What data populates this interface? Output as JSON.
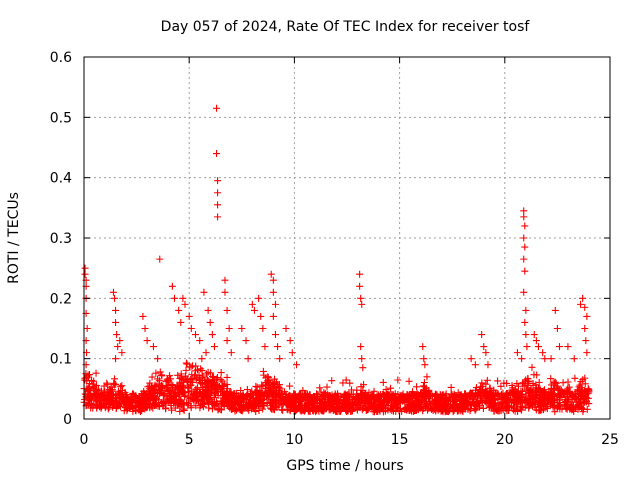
{
  "chart_data": {
    "type": "scatter",
    "title": "Day 057 of 2024, Rate Of TEC Index for receiver tosf",
    "xlabel": "GPS time / hours",
    "ylabel": "ROTI / TECUs",
    "xlim": [
      0,
      25
    ],
    "ylim": [
      0,
      0.6
    ],
    "x_ticks": [
      0,
      5,
      10,
      15,
      20,
      25
    ],
    "y_ticks": [
      0,
      0.1,
      0.2,
      0.3,
      0.4,
      0.5,
      0.6
    ],
    "x_tick_labels": [
      "0",
      "5",
      "10",
      "15",
      "20",
      "25"
    ],
    "y_tick_labels": [
      "0",
      "0.1",
      "0.2",
      "0.3",
      "0.4",
      "0.5",
      "0.6"
    ],
    "grid": true,
    "marker": "+",
    "marker_color": "#ff0000",
    "series": [
      {
        "name": "ROTI",
        "description": "Dense cloud of ROTI samples 0.01-0.06 TECU/min spanning 0-24 h, with spikes near 0.1 h, 1.5 h, 3.5 h, 4.5-6.5 h, 6.3 h, 8-9 h, 13.1 h, 16.2 h, 19 h, 20.9 h, 21.5 h, 23.8 h",
        "points": [
          [
            0.05,
            0.25
          ],
          [
            0.05,
            0.24
          ],
          [
            0.1,
            0.23
          ],
          [
            0.1,
            0.22
          ],
          [
            0.1,
            0.2
          ],
          [
            0.1,
            0.175
          ],
          [
            0.15,
            0.15
          ],
          [
            0.1,
            0.13
          ],
          [
            0.12,
            0.11
          ],
          [
            0.1,
            0.09
          ],
          [
            1.4,
            0.21
          ],
          [
            1.45,
            0.2
          ],
          [
            1.5,
            0.18
          ],
          [
            1.5,
            0.16
          ],
          [
            1.55,
            0.14
          ],
          [
            1.6,
            0.12
          ],
          [
            1.5,
            0.1
          ],
          [
            1.7,
            0.13
          ],
          [
            1.8,
            0.11
          ],
          [
            2.8,
            0.17
          ],
          [
            2.9,
            0.15
          ],
          [
            3.0,
            0.13
          ],
          [
            3.6,
            0.265
          ],
          [
            3.3,
            0.12
          ],
          [
            3.5,
            0.1
          ],
          [
            4.2,
            0.22
          ],
          [
            4.3,
            0.2
          ],
          [
            4.5,
            0.18
          ],
          [
            4.6,
            0.16
          ],
          [
            4.7,
            0.2
          ],
          [
            4.8,
            0.19
          ],
          [
            5.0,
            0.17
          ],
          [
            5.1,
            0.15
          ],
          [
            5.3,
            0.14
          ],
          [
            5.5,
            0.13
          ],
          [
            5.7,
            0.21
          ],
          [
            5.9,
            0.18
          ],
          [
            6.0,
            0.16
          ],
          [
            6.1,
            0.14
          ],
          [
            6.2,
            0.12
          ],
          [
            5.8,
            0.11
          ],
          [
            5.6,
            0.1
          ],
          [
            6.3,
            0.515
          ],
          [
            6.3,
            0.44
          ],
          [
            6.35,
            0.395
          ],
          [
            6.35,
            0.375
          ],
          [
            6.35,
            0.355
          ],
          [
            6.35,
            0.335
          ],
          [
            6.7,
            0.23
          ],
          [
            6.7,
            0.21
          ],
          [
            6.8,
            0.18
          ],
          [
            6.9,
            0.15
          ],
          [
            6.8,
            0.13
          ],
          [
            7.0,
            0.11
          ],
          [
            7.5,
            0.15
          ],
          [
            7.7,
            0.13
          ],
          [
            7.8,
            0.1
          ],
          [
            8.0,
            0.19
          ],
          [
            8.1,
            0.18
          ],
          [
            8.3,
            0.2
          ],
          [
            8.4,
            0.17
          ],
          [
            8.5,
            0.15
          ],
          [
            8.6,
            0.12
          ],
          [
            8.9,
            0.24
          ],
          [
            9.0,
            0.23
          ],
          [
            9.0,
            0.21
          ],
          [
            9.1,
            0.19
          ],
          [
            9.0,
            0.17
          ],
          [
            9.1,
            0.14
          ],
          [
            9.2,
            0.12
          ],
          [
            9.3,
            0.1
          ],
          [
            9.6,
            0.15
          ],
          [
            9.8,
            0.13
          ],
          [
            9.9,
            0.11
          ],
          [
            10.1,
            0.09
          ],
          [
            13.1,
            0.24
          ],
          [
            13.1,
            0.22
          ],
          [
            13.15,
            0.2
          ],
          [
            13.2,
            0.19
          ],
          [
            13.15,
            0.12
          ],
          [
            13.2,
            0.1
          ],
          [
            13.25,
            0.085
          ],
          [
            16.1,
            0.12
          ],
          [
            16.15,
            0.1
          ],
          [
            16.2,
            0.09
          ],
          [
            16.3,
            0.07
          ],
          [
            18.4,
            0.1
          ],
          [
            18.6,
            0.09
          ],
          [
            18.9,
            0.14
          ],
          [
            19.0,
            0.12
          ],
          [
            19.1,
            0.11
          ],
          [
            19.2,
            0.09
          ],
          [
            20.6,
            0.11
          ],
          [
            20.8,
            0.1
          ],
          [
            20.9,
            0.345
          ],
          [
            20.9,
            0.335
          ],
          [
            20.95,
            0.32
          ],
          [
            20.9,
            0.3
          ],
          [
            20.95,
            0.285
          ],
          [
            20.9,
            0.265
          ],
          [
            20.95,
            0.245
          ],
          [
            20.9,
            0.21
          ],
          [
            21.0,
            0.18
          ],
          [
            20.95,
            0.16
          ],
          [
            21.0,
            0.14
          ],
          [
            21.05,
            0.12
          ],
          [
            21.4,
            0.14
          ],
          [
            21.5,
            0.13
          ],
          [
            21.6,
            0.12
          ],
          [
            21.8,
            0.11
          ],
          [
            21.9,
            0.1
          ],
          [
            22.2,
            0.1
          ],
          [
            22.4,
            0.18
          ],
          [
            22.5,
            0.15
          ],
          [
            22.6,
            0.12
          ],
          [
            23.0,
            0.12
          ],
          [
            23.3,
            0.1
          ],
          [
            23.6,
            0.19
          ],
          [
            23.7,
            0.2
          ],
          [
            23.8,
            0.185
          ],
          [
            23.9,
            0.17
          ],
          [
            23.8,
            0.15
          ],
          [
            23.85,
            0.13
          ],
          [
            23.9,
            0.11
          ]
        ]
      }
    ]
  }
}
